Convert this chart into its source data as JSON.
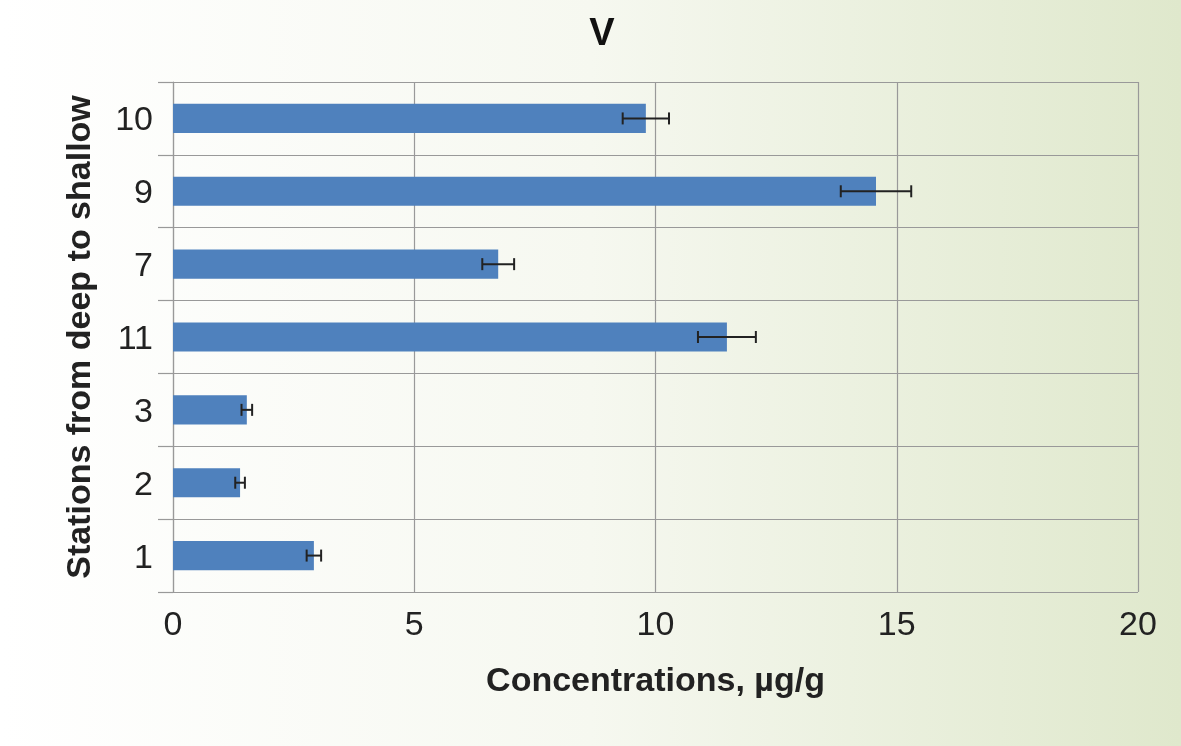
{
  "chart_data": {
    "type": "bar",
    "orientation": "horizontal",
    "title": "V",
    "xlabel": "Concentrations, µg/g",
    "ylabel": "Stations from deep to shallow",
    "categories": [
      "10",
      "9",
      "7",
      "11",
      "3",
      "2",
      "1"
    ],
    "values": [
      9.8,
      14.57,
      6.74,
      11.48,
      1.53,
      1.39,
      2.92
    ],
    "errors": [
      0.48,
      0.73,
      0.33,
      0.6,
      0.11,
      0.1,
      0.15
    ],
    "color": "#4f81bd",
    "xlim": [
      0,
      20
    ],
    "xticks": [
      0,
      5,
      10,
      15,
      20
    ],
    "grid": true
  }
}
